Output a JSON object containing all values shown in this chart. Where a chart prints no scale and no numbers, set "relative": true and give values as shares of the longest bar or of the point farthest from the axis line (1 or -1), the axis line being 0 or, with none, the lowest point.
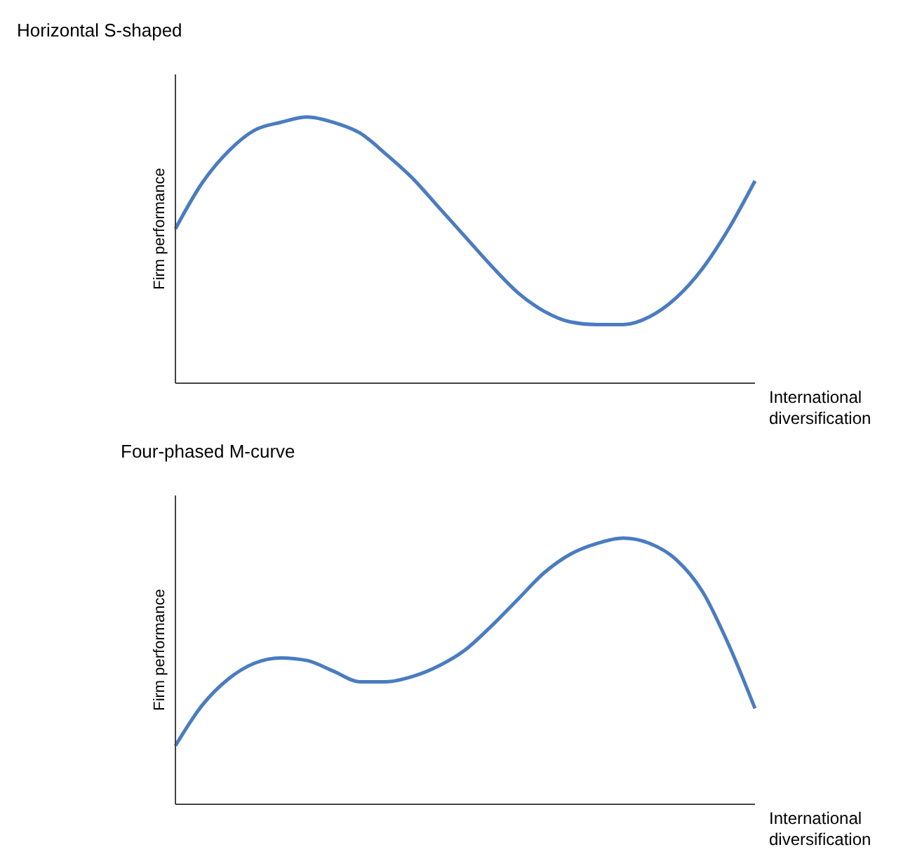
{
  "chart_data": [
    {
      "type": "line",
      "title": "Horizontal S-shaped",
      "xlabel": "International diversification",
      "ylabel": "Firm performance",
      "relative": true,
      "marker": "none",
      "categories": [
        null,
        null,
        null,
        null,
        null,
        null,
        null,
        null,
        null,
        null,
        null,
        null,
        null,
        null,
        null,
        null,
        null,
        null,
        null,
        null,
        null,
        null,
        null
      ],
      "series": [
        {
          "color": "#4a7cc0",
          "values": [
            0.58,
            0.75,
            0.87,
            0.95,
            0.98,
            1,
            0.98,
            0.94,
            0.86,
            0.77,
            0.66,
            0.55,
            0.44,
            0.34,
            0.27,
            0.23,
            0.22,
            0.22,
            0.25,
            0.32,
            0.43,
            0.58,
            0.76
          ]
        }
      ]
    },
    {
      "type": "line",
      "title": "Four-phased M-curve",
      "xlabel": "International diversification",
      "ylabel": "Firm performance",
      "relative": true,
      "marker": "none",
      "categories": [
        null,
        null,
        null,
        null,
        null,
        null,
        null,
        null,
        null,
        null,
        null,
        null,
        null,
        null,
        null,
        null,
        null,
        null,
        null,
        null,
        null,
        null,
        null
      ],
      "series": [
        {
          "color": "#4a7cc0",
          "values": [
            0.22,
            0.37,
            0.47,
            0.53,
            0.55,
            0.54,
            0.5,
            0.46,
            0.46,
            0.48,
            0.52,
            0.58,
            0.67,
            0.77,
            0.87,
            0.94,
            0.98,
            1,
            0.98,
            0.92,
            0.8,
            0.6,
            0.36
          ]
        }
      ]
    }
  ]
}
